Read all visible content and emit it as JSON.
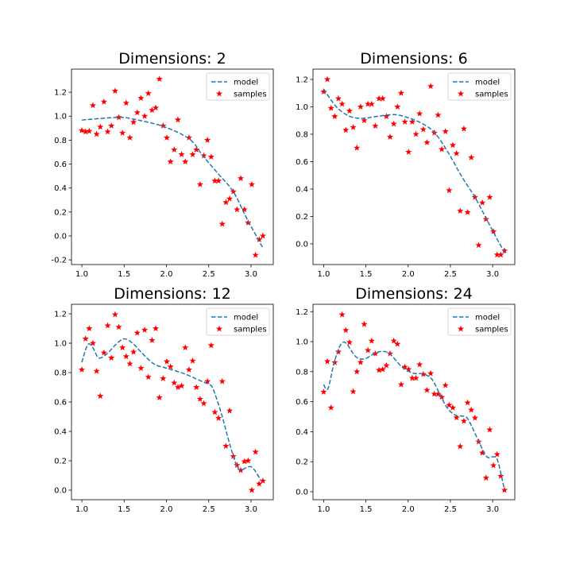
{
  "chart_data": [
    {
      "type": "scatter+line",
      "title": "Dimensions: 2",
      "xlabel": "",
      "ylabel": "",
      "xlim": [
        0.878,
        3.263
      ],
      "ylim": [
        -0.239,
        1.393
      ],
      "xticks": [
        "1.0",
        "1.5",
        "2.0",
        "2.5",
        "3.0"
      ],
      "yticks": [
        "-0.2",
        "0.0",
        "0.2",
        "0.4",
        "0.6",
        "0.8",
        "1.0",
        "1.2"
      ],
      "legend": "top-right",
      "model": {
        "name": "model",
        "color": "#1f77b4",
        "x": [
          1.0,
          1.43,
          1.61,
          1.96,
          2.27,
          2.43,
          2.61,
          2.79,
          2.95,
          3.14
        ],
        "y": [
          0.968,
          0.99,
          0.975,
          0.915,
          0.81,
          0.67,
          0.52,
          0.37,
          0.146,
          -0.1
        ]
      },
      "samples": {
        "name": "samples",
        "color": "#ff0000",
        "y": [
          0.88,
          0.87,
          0.875,
          1.09,
          0.85,
          0.91,
          1.12,
          0.87,
          0.92,
          1.21,
          0.99,
          0.86,
          1.11,
          0.82,
          0.95,
          1.03,
          1.15,
          1.0,
          1.19,
          1.05,
          1.07,
          1.31,
          0.92,
          0.82,
          0.62,
          0.72,
          0.97,
          0.68,
          0.62,
          0.82,
          0.68,
          0.72,
          0.43,
          0.67,
          0.8,
          0.66,
          0.46,
          0.46,
          0.1,
          0.28,
          0.31,
          0.37,
          0.22,
          0.48,
          0.22,
          0.11,
          0.43,
          -0.16,
          -0.03,
          0.0
        ]
      }
    },
    {
      "type": "scatter+line",
      "title": "Dimensions: 6",
      "xlabel": "",
      "ylabel": "",
      "xlim": [
        0.874,
        3.262
      ],
      "ylim": [
        -0.151,
        1.275
      ],
      "xticks": [
        "1.0",
        "1.5",
        "2.0",
        "2.5",
        "3.0"
      ],
      "yticks": [
        "0.0",
        "0.2",
        "0.4",
        "0.6",
        "0.8",
        "1.0",
        "1.2"
      ],
      "legend": "top-right",
      "model": {
        "name": "model",
        "color": "#1f77b4",
        "x": [
          1.0,
          1.15,
          1.31,
          1.47,
          1.63,
          1.84,
          2.0,
          2.16,
          2.31,
          2.47,
          2.63,
          2.79,
          2.94,
          3.04,
          3.15
        ],
        "y": [
          1.13,
          1.0,
          0.93,
          0.916,
          0.93,
          0.943,
          0.92,
          0.88,
          0.813,
          0.67,
          0.495,
          0.34,
          0.166,
          0.05,
          -0.075
        ]
      },
      "samples": {
        "name": "samples",
        "color": "#ff0000",
        "y": [
          1.11,
          1.2,
          0.99,
          0.93,
          1.06,
          1.02,
          0.83,
          0.97,
          0.85,
          0.7,
          1.0,
          0.9,
          1.02,
          1.02,
          0.86,
          1.06,
          1.06,
          0.93,
          0.78,
          0.875,
          1.0,
          1.1,
          0.89,
          0.67,
          0.89,
          0.8,
          0.95,
          0.835,
          0.74,
          1.15,
          0.81,
          0.94,
          0.69,
          0.82,
          0.39,
          0.72,
          0.66,
          0.24,
          0.84,
          0.23,
          0.63,
          0.34,
          -0.01,
          0.3,
          0.18,
          0.34,
          0.09,
          -0.08,
          -0.08,
          -0.05
        ]
      }
    },
    {
      "type": "scatter+line",
      "title": "Dimensions: 12",
      "xlabel": "",
      "ylabel": "",
      "xlim": [
        0.878,
        3.263
      ],
      "ylim": [
        -0.065,
        1.265
      ],
      "xticks": [
        "1.0",
        "1.5",
        "2.0",
        "2.5",
        "3.0"
      ],
      "yticks": [
        "0.0",
        "0.2",
        "0.4",
        "0.6",
        "0.8",
        "1.0",
        "1.2"
      ],
      "legend": "top-right",
      "model": {
        "name": "model",
        "color": "#1f77b4",
        "x": [
          1.0,
          1.07,
          1.13,
          1.2,
          1.3,
          1.4,
          1.5,
          1.6,
          1.7,
          1.85,
          2.0,
          2.2,
          2.4,
          2.5,
          2.55,
          2.65,
          2.75,
          2.85,
          2.95,
          3.0,
          3.05,
          3.12
        ],
        "y": [
          0.87,
          0.99,
          0.97,
          0.9,
          0.93,
          0.99,
          1.03,
          1.0,
          0.94,
          0.86,
          0.83,
          0.795,
          0.745,
          0.72,
          0.69,
          0.52,
          0.31,
          0.146,
          0.155,
          0.16,
          0.13,
          0.063
        ]
      },
      "samples": {
        "name": "samples",
        "color": "#ff0000",
        "y": [
          0.82,
          1.03,
          1.1,
          1.0,
          0.81,
          0.64,
          0.935,
          1.12,
          0.9,
          1.195,
          1.11,
          0.97,
          0.91,
          0.86,
          0.94,
          1.07,
          0.83,
          1.09,
          0.77,
          1.02,
          1.1,
          0.63,
          0.76,
          0.875,
          0.84,
          0.73,
          0.7,
          0.71,
          0.97,
          0.82,
          0.88,
          0.7,
          0.62,
          0.59,
          0.74,
          0.985,
          0.53,
          0.49,
          0.74,
          0.3,
          0.54,
          0.23,
          0.17,
          0.135,
          0.195,
          0.2,
          0.0,
          0.26,
          0.043,
          0.063
        ]
      }
    },
    {
      "type": "scatter+line",
      "title": "Dimensions: 24",
      "xlabel": "",
      "ylabel": "",
      "xlim": [
        0.874,
        3.262
      ],
      "ylim": [
        -0.053,
        1.249
      ],
      "xticks": [
        "1.0",
        "1.5",
        "2.0",
        "2.5",
        "3.0"
      ],
      "yticks": [
        "0.0",
        "0.2",
        "0.4",
        "0.6",
        "0.8",
        "1.0",
        "1.2"
      ],
      "legend": "top-right",
      "model": {
        "name": "model",
        "color": "#1f77b4",
        "x": [
          1.0,
          1.05,
          1.12,
          1.18,
          1.23,
          1.28,
          1.38,
          1.48,
          1.59,
          1.68,
          1.78,
          1.93,
          2.06,
          2.18,
          2.28,
          2.37,
          2.46,
          2.56,
          2.68,
          2.74,
          2.84,
          2.93,
          3.01,
          3.06,
          3.14
        ],
        "y": [
          0.714,
          0.686,
          0.85,
          0.956,
          0.996,
          0.98,
          0.9,
          0.885,
          0.917,
          0.935,
          0.92,
          0.83,
          0.79,
          0.785,
          0.75,
          0.656,
          0.56,
          0.51,
          0.5,
          0.45,
          0.33,
          0.233,
          0.233,
          0.206,
          0.012
        ]
      },
      "samples": {
        "name": "samples",
        "color": "#ff0000",
        "y": [
          0.665,
          0.868,
          0.56,
          0.861,
          0.932,
          1.18,
          1.076,
          0.995,
          0.667,
          0.8,
          0.862,
          1.116,
          0.942,
          1.005,
          0.92,
          0.81,
          0.815,
          0.841,
          0.92,
          1.005,
          0.984,
          0.714,
          0.831,
          0.815,
          0.757,
          0.757,
          0.847,
          0.783,
          0.677,
          0.788,
          0.651,
          0.651,
          0.63,
          0.709,
          0.577,
          0.56,
          0.494,
          0.302,
          0.471,
          0.593,
          0.545,
          0.492,
          0.333,
          0.259,
          0.092,
          0.413,
          0.175,
          0.249,
          0.104,
          0.011
        ]
      }
    }
  ]
}
